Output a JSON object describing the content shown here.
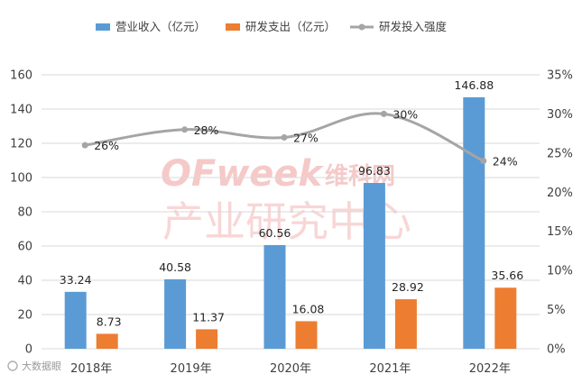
{
  "chart_data": {
    "type": "bar",
    "categories": [
      "2018年",
      "2019年",
      "2020年",
      "2021年",
      "2022年"
    ],
    "series": [
      {
        "name": "营业收入（亿元）",
        "kind": "bar",
        "axis": "left",
        "color": "#5b9bd5",
        "values": [
          33.24,
          40.58,
          60.56,
          96.83,
          146.88
        ],
        "labels": [
          "33.24",
          "40.58",
          "60.56",
          "96.83",
          "146.88"
        ]
      },
      {
        "name": "研发支出（亿元）",
        "kind": "bar",
        "axis": "left",
        "color": "#ed7d31",
        "values": [
          8.73,
          11.37,
          16.08,
          28.92,
          35.66
        ],
        "labels": [
          "8.73",
          "11.37",
          "16.08",
          "28.92",
          "35.66"
        ]
      },
      {
        "name": "研发投入强度",
        "kind": "line",
        "axis": "right",
        "color": "#a5a5a5",
        "values": [
          26,
          28,
          27,
          30,
          24
        ],
        "labels": [
          "26%",
          "28%",
          "27%",
          "30%",
          "24%"
        ]
      }
    ],
    "y_left": {
      "min": 0,
      "max": 160,
      "ticks": [
        "0",
        "20",
        "40",
        "60",
        "80",
        "100",
        "120",
        "140",
        "160"
      ]
    },
    "y_right": {
      "min": 0,
      "max": 35,
      "ticks": [
        "0%",
        "5%",
        "10%",
        "15%",
        "20%",
        "25%",
        "30%",
        "35%"
      ]
    },
    "grid": true,
    "legend_position": "top"
  },
  "watermark": {
    "latin": "OFweek",
    "cn_small": "维科网",
    "cn_big": "产业研究中心"
  },
  "corner_logo": {
    "text": "大数据眼"
  }
}
